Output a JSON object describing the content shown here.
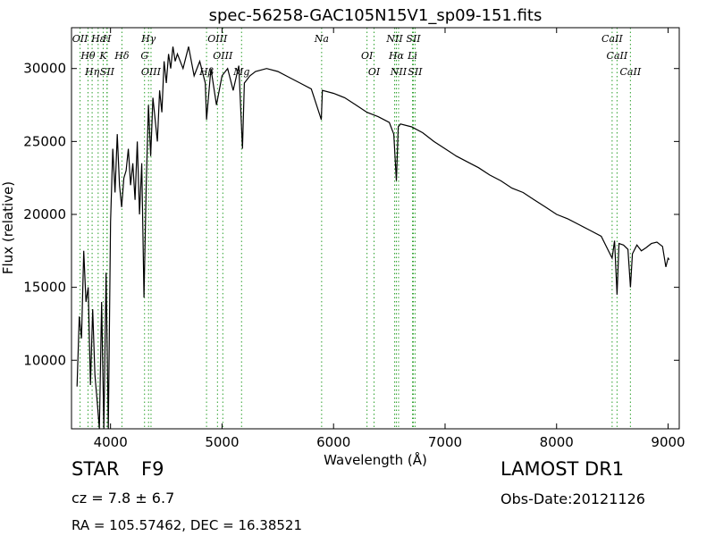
{
  "chart_data": {
    "type": "line",
    "title": "spec-56258-GAC105N15V1_sp09-151.fits",
    "xlabel": "Wavelength (Å)",
    "ylabel": "Flux (relative)",
    "xlim": [
      3650,
      9100
    ],
    "ylim": [
      5300,
      32800
    ],
    "xticks": [
      4000,
      5000,
      6000,
      7000,
      8000,
      9000
    ],
    "yticks": [
      10000,
      15000,
      20000,
      25000,
      30000
    ],
    "grid": false,
    "line_color": "#000000",
    "marker_color": "#2ca02c",
    "series": [
      {
        "x": [
          3700,
          3720,
          3740,
          3760,
          3780,
          3800,
          3820,
          3840,
          3860,
          3880,
          3900,
          3920,
          3940,
          3960,
          3980,
          4000,
          4020,
          4040,
          4060,
          4080,
          4100,
          4120,
          4140,
          4160,
          4180,
          4200,
          4220,
          4240,
          4260,
          4280,
          4300,
          4320,
          4340,
          4360,
          4380,
          4400,
          4420,
          4440,
          4460,
          4480,
          4500,
          4520,
          4540,
          4560,
          4580,
          4600,
          4650,
          4700,
          4750,
          4800,
          4850,
          4861,
          4900,
          4950,
          5000,
          5050,
          5100,
          5150,
          5183,
          5200,
          5250,
          5300,
          5400,
          5500,
          5600,
          5700,
          5800,
          5890,
          5900,
          6000,
          6100,
          6200,
          6300,
          6400,
          6500,
          6540,
          6563,
          6580,
          6600,
          6700,
          6800,
          6900,
          7000,
          7100,
          7200,
          7300,
          7400,
          7500,
          7600,
          7700,
          7800,
          7900,
          8000,
          8100,
          8200,
          8300,
          8400,
          8498,
          8520,
          8542,
          8560,
          8600,
          8640,
          8662,
          8680,
          8720,
          8760,
          8800,
          8850,
          8900,
          8950,
          8980,
          9000,
          9010
        ],
        "y": [
          8200,
          13000,
          11500,
          17500,
          14000,
          15000,
          8300,
          13500,
          9000,
          7200,
          4700,
          14000,
          4700,
          16000,
          5000,
          19500,
          24500,
          21500,
          25500,
          22000,
          20500,
          22500,
          23000,
          24500,
          22000,
          23500,
          21000,
          25000,
          20000,
          23500,
          14300,
          22000,
          27500,
          24000,
          28000,
          26500,
          25000,
          28500,
          27000,
          30500,
          29000,
          31000,
          30000,
          31500,
          30500,
          31000,
          30000,
          31500,
          29500,
          30500,
          29000,
          26500,
          30000,
          27500,
          29500,
          30000,
          28500,
          30200,
          24500,
          29000,
          29500,
          29800,
          30000,
          29800,
          29400,
          29000,
          28600,
          26500,
          28500,
          28300,
          28000,
          27500,
          27000,
          26700,
          26300,
          25500,
          22300,
          26000,
          26200,
          26000,
          25600,
          25000,
          24500,
          24000,
          23600,
          23200,
          22700,
          22300,
          21800,
          21500,
          21000,
          20500,
          20000,
          19700,
          19300,
          18900,
          18500,
          17000,
          18200,
          14500,
          18000,
          17900,
          17600,
          15000,
          17300,
          17900,
          17500,
          17700,
          18000,
          18100,
          17800,
          16400,
          17000,
          16900
        ]
      }
    ],
    "lines": [
      {
        "name": "OII",
        "x": 3727
      },
      {
        "name": "Hθ",
        "x": 3798
      },
      {
        "name": "Hη",
        "x": 3835
      },
      {
        "name": "Hε",
        "x": 3889
      },
      {
        "name": "K",
        "x": 3934
      },
      {
        "name": "SII",
        "x": 3970
      },
      {
        "name": "H",
        "x": 3968
      },
      {
        "name": "Hδ",
        "x": 4102
      },
      {
        "name": "OIII",
        "x": 4363
      },
      {
        "name": "Hγ",
        "x": 4341
      },
      {
        "name": "G",
        "x": 4305
      },
      {
        "name": "Hβ",
        "x": 4861
      },
      {
        "name": "OIII",
        "x": 4959
      },
      {
        "name": "OIII",
        "x": 5007
      },
      {
        "name": "Mg",
        "x": 5175
      },
      {
        "name": "Na",
        "x": 5893
      },
      {
        "name": "OI",
        "x": 6300
      },
      {
        "name": "OI",
        "x": 6363
      },
      {
        "name": "NII",
        "x": 6548
      },
      {
        "name": "Hα",
        "x": 6563
      },
      {
        "name": "NII",
        "x": 6583
      },
      {
        "name": "SII",
        "x": 6716
      },
      {
        "name": "Li",
        "x": 6708
      },
      {
        "name": "SII",
        "x": 6731
      },
      {
        "name": "CaII",
        "x": 8498
      },
      {
        "name": "CaII",
        "x": 8542
      },
      {
        "name": "CaII",
        "x": 8662
      }
    ]
  },
  "info": {
    "class": "STAR",
    "subclass": "F9",
    "survey": "LAMOST DR1",
    "cz": "cz = 7.8 ± 6.7",
    "obs_date": "Obs-Date:20121126",
    "radec": "RA = 105.57462, DEC = 16.38521"
  }
}
